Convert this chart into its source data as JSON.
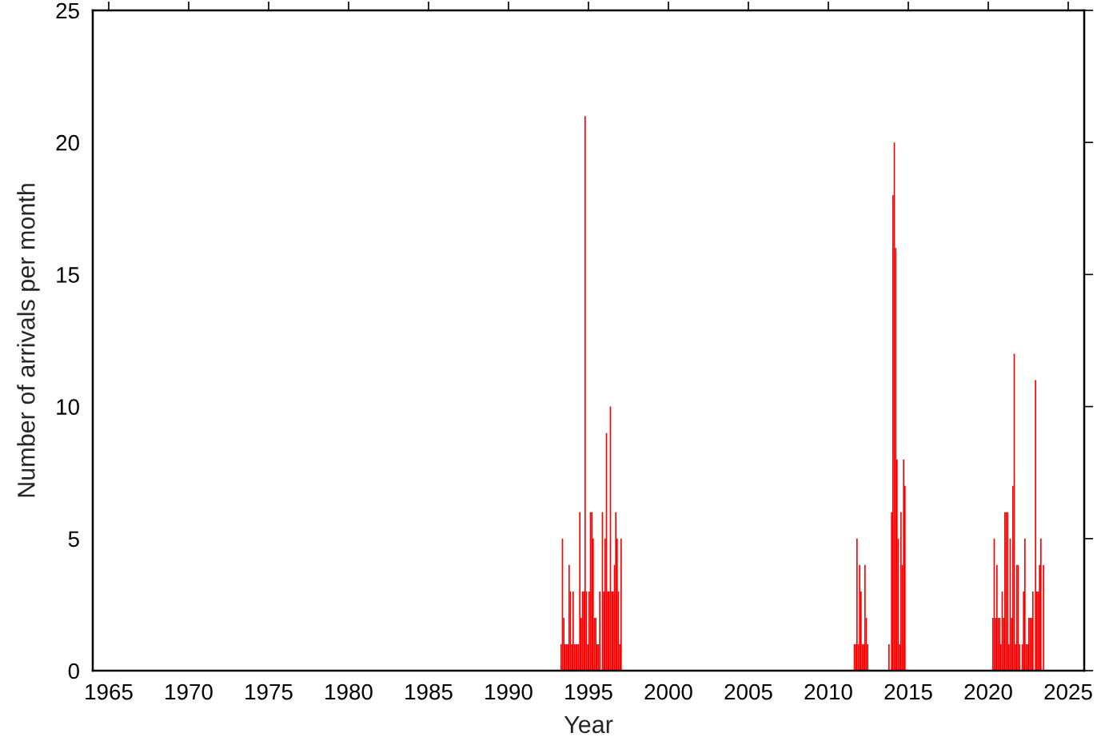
{
  "chart_data": {
    "type": "bar",
    "xlabel": "Year",
    "ylabel": "Number of arrivals per month",
    "x": [
      "1993-04",
      "1993-05",
      "1993-06",
      "1993-07",
      "1993-08",
      "1993-09",
      "1993-10",
      "1993-11",
      "1993-12",
      "1994-01",
      "1994-02",
      "1994-03",
      "1994-04",
      "1994-05",
      "1994-06",
      "1994-07",
      "1994-08",
      "1994-09",
      "1994-10",
      "1994-11",
      "1994-12",
      "1995-01",
      "1995-02",
      "1995-03",
      "1995-04",
      "1995-05",
      "1995-06",
      "1995-07",
      "1995-08",
      "1995-09",
      "1995-10",
      "1995-11",
      "1995-12",
      "1996-01",
      "1996-02",
      "1996-03",
      "1996-04",
      "1996-05",
      "1996-06",
      "1996-07",
      "1996-08",
      "1996-09",
      "1996-10",
      "1996-11",
      "1996-12",
      "1997-01",
      "2011-08",
      "2011-09",
      "2011-10",
      "2011-11",
      "2011-12",
      "2012-01",
      "2012-02",
      "2012-03",
      "2012-04",
      "2012-05",
      "2012-06",
      "2013-10",
      "2013-11",
      "2013-12",
      "2014-01",
      "2014-02",
      "2014-03",
      "2014-04",
      "2014-05",
      "2014-06",
      "2014-07",
      "2014-08",
      "2014-09",
      "2014-10",
      "2020-04",
      "2020-05",
      "2020-06",
      "2020-07",
      "2020-08",
      "2020-09",
      "2020-10",
      "2020-11",
      "2020-12",
      "2021-01",
      "2021-02",
      "2021-03",
      "2021-04",
      "2021-05",
      "2021-06",
      "2021-07",
      "2021-08",
      "2021-09",
      "2021-10",
      "2021-11",
      "2021-12",
      "2022-01",
      "2022-02",
      "2022-03",
      "2022-04",
      "2022-05",
      "2022-06",
      "2022-07",
      "2022-08",
      "2022-09",
      "2022-10",
      "2022-11",
      "2022-12",
      "2023-01",
      "2023-02",
      "2023-03",
      "2023-04",
      "2023-05",
      "2023-06"
    ],
    "values": [
      1,
      5,
      2,
      1,
      1,
      1,
      4,
      3,
      1,
      3,
      1,
      1,
      1,
      1,
      6,
      2,
      3,
      3,
      21,
      3,
      1,
      3,
      6,
      6,
      5,
      2,
      2,
      1,
      1,
      3,
      0,
      6,
      3,
      5,
      9,
      3,
      3,
      10,
      3,
      3,
      4,
      6,
      5,
      3,
      1,
      5,
      1,
      1,
      5,
      1,
      4,
      3,
      1,
      1,
      4,
      2,
      1,
      1,
      0,
      6,
      18,
      20,
      16,
      8,
      5,
      1,
      6,
      4,
      8,
      7,
      2,
      5,
      2,
      4,
      2,
      2,
      1,
      3,
      2,
      6,
      6,
      6,
      1,
      5,
      2,
      7,
      12,
      1,
      4,
      4,
      1,
      0,
      1,
      3,
      5,
      1,
      1,
      2,
      2,
      2,
      3,
      0,
      11,
      3,
      3,
      4,
      5,
      0,
      4
    ],
    "color": "#ff0000",
    "xlim": [
      "1964-01",
      "2026-01"
    ],
    "xticks": [
      {
        "value": "1965",
        "label": "1965"
      },
      {
        "value": "1970",
        "label": "1970"
      },
      {
        "value": "1975",
        "label": "1975"
      },
      {
        "value": "1980",
        "label": "1980"
      },
      {
        "value": "1985",
        "label": "1985"
      },
      {
        "value": "1990",
        "label": "1990"
      },
      {
        "value": "1995",
        "label": "1995"
      },
      {
        "value": "2000",
        "label": "2000"
      },
      {
        "value": "2005",
        "label": "2005"
      },
      {
        "value": "2010",
        "label": "2010"
      },
      {
        "value": "2015",
        "label": "2015"
      },
      {
        "value": "2020",
        "label": "2020"
      },
      {
        "value": "2025",
        "label": "2025"
      }
    ],
    "ylim": [
      0,
      25
    ],
    "yticks": [
      0,
      5,
      10,
      15,
      20,
      25
    ],
    "grid": false
  }
}
